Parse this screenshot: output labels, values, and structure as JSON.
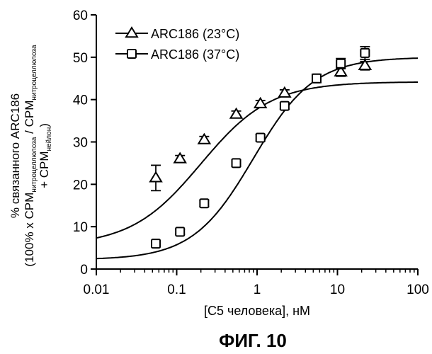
{
  "chart_data": {
    "type": "scatter",
    "xlabel": "[C5 человека], нМ",
    "ylabel": {
      "line1": "% связанного ARC186",
      "line2_pre": "(100% x CPM",
      "line2_sub1": "нитроцеллюлоза",
      "line2_mid": " / CPM",
      "line2_sub2": "нитроцеллюлоза",
      "line3_pre": "+ CPM",
      "line3_sub": "нейлон",
      "line3_post": ")"
    },
    "x_scale": "log",
    "xlim": [
      0.01,
      100
    ],
    "ylim": [
      0,
      60
    ],
    "x_ticks": [
      0.01,
      0.1,
      1,
      10,
      100
    ],
    "x_tick_labels": [
      "0.01",
      "0.1",
      "1",
      "10",
      "100"
    ],
    "y_ticks": [
      0,
      10,
      20,
      30,
      40,
      50,
      60
    ],
    "y_tick_labels": [
      "0",
      "10",
      "20",
      "30",
      "40",
      "50",
      "60"
    ],
    "legend_position": "top-left",
    "grid": false,
    "series": [
      {
        "name": "ARC186  (23°C)",
        "marker": "triangle",
        "x": [
          0.055,
          0.11,
          0.22,
          0.55,
          1.1,
          2.2,
          11,
          22
        ],
        "y": [
          21.5,
          26,
          30.5,
          36.5,
          39,
          41.5,
          46.5,
          48
        ],
        "err": [
          3,
          0.8,
          0.8,
          0.8,
          0.8,
          0.8,
          1,
          1
        ],
        "fit": {
          "bottom": 5.5,
          "top": 44.2,
          "ec50": 0.2,
          "hill": 1
        }
      },
      {
        "name": "ARC186  (37°C)",
        "marker": "square",
        "x": [
          0.055,
          0.11,
          0.22,
          0.55,
          1.1,
          2.2,
          5.5,
          11,
          22
        ],
        "y": [
          6,
          8.8,
          15.5,
          25,
          31,
          38.5,
          45,
          48.5,
          51
        ],
        "err": [
          0.6,
          0.6,
          0.8,
          0.8,
          0.8,
          0.8,
          1,
          1.2,
          1.5
        ],
        "fit": {
          "bottom": 2.2,
          "top": 50,
          "ec50": 0.9,
          "hill": 1.15
        }
      }
    ]
  },
  "caption": "ФИГ. 10"
}
